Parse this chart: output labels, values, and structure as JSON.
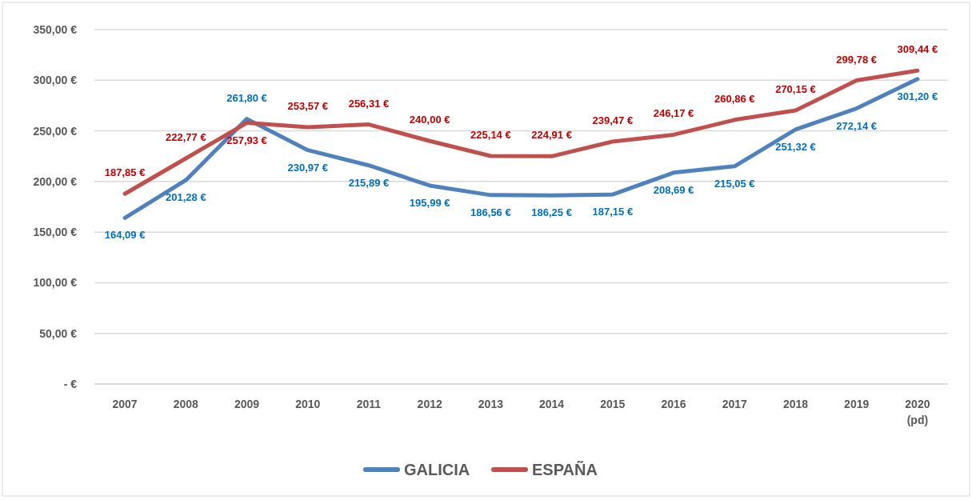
{
  "chart_data": {
    "type": "line",
    "categories": [
      "2007",
      "2008",
      "2009",
      "2010",
      "2011",
      "2012",
      "2013",
      "2014",
      "2015",
      "2016",
      "2017",
      "2018",
      "2019",
      "2020 (pd)"
    ],
    "series": [
      {
        "name": "GALICIA",
        "color": "#4f81bd",
        "values": [
          164.09,
          201.28,
          261.8,
          230.97,
          215.89,
          195.99,
          186.56,
          186.25,
          187.15,
          208.69,
          215.05,
          251.32,
          272.14,
          301.2
        ],
        "value_labels": [
          "164,09 €",
          "201,28 €",
          "261,80 €",
          "230,97 €",
          "215,89 €",
          "195,99 €",
          "186,56 €",
          "186,25 €",
          "187,15 €",
          "208,69 €",
          "215,05 €",
          "251,32 €",
          "272,14 €",
          "301,20 €"
        ]
      },
      {
        "name": "ESPAÑA",
        "color": "#c0504d",
        "values": [
          187.85,
          222.77,
          257.93,
          253.57,
          256.31,
          240.0,
          225.14,
          224.91,
          239.47,
          246.17,
          260.86,
          270.15,
          299.78,
          309.44
        ],
        "value_labels": [
          "187,85 €",
          "222,77 €",
          "257,93 €",
          "253,57 €",
          "256,31 €",
          "240,00 €",
          "225,14 €",
          "224,91 €",
          "239,47 €",
          "246,17 €",
          "260,86 €",
          "270,15 €",
          "299,78 €",
          "309,44 €"
        ]
      }
    ],
    "ylim": [
      0,
      350
    ],
    "yticks": [
      {
        "value": 0,
        "label": "-  €"
      },
      {
        "value": 50,
        "label": "50,00 €"
      },
      {
        "value": 100,
        "label": "100,00 €"
      },
      {
        "value": 150,
        "label": "150,00 €"
      },
      {
        "value": 200,
        "label": "200,00 €"
      },
      {
        "value": 250,
        "label": "250,00 €"
      },
      {
        "value": 300,
        "label": "300,00 €"
      },
      {
        "value": 350,
        "label": "350,00 €"
      }
    ],
    "grid": "y",
    "legend": "bottom",
    "marker": "none",
    "line_style": "solid"
  }
}
